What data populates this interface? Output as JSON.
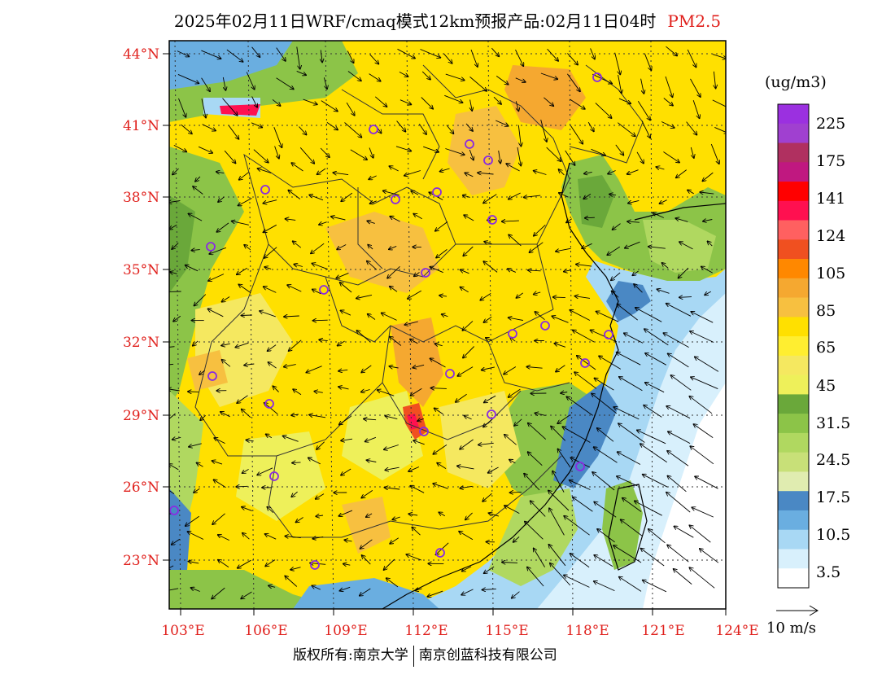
{
  "title": {
    "main": "2025年02月11日WRF/cmaq模式12km预报产品:02月11日04时",
    "species": "PM2.5",
    "species_color": "#e0201c"
  },
  "lat_labels": [
    "44°N",
    "41°N",
    "38°N",
    "35°N",
    "32°N",
    "29°N",
    "26°N",
    "23°N"
  ],
  "lon_labels": [
    "103°E",
    "106°E",
    "109°E",
    "112°E",
    "115°E",
    "118°E",
    "121°E",
    "124°E"
  ],
  "colorbar": {
    "unit": "(ug/m3)",
    "colors": [
      "#9b30e0",
      "#a040d0",
      "#b03060",
      "#c01880",
      "#ff0000",
      "#ff1050",
      "#ff6060",
      "#f05020",
      "#ff8800",
      "#f5a830",
      "#f7c040",
      "#ffe000",
      "#ffee30",
      "#f5e860",
      "#eef05a",
      "#6aa83a",
      "#8cc448",
      "#b0d860",
      "#c8e078",
      "#e0ecb0",
      "#4a88c4",
      "#6aaee0",
      "#a8d8f4",
      "#d8f0fc",
      "#ffffff"
    ],
    "labels": [
      "225",
      "175",
      "141",
      "124",
      "105",
      "85",
      "65",
      "45",
      "31.5",
      "24.5",
      "17.5",
      "10.5",
      "3.5"
    ]
  },
  "vector_legend": {
    "label": "10 m/s"
  },
  "copyright": {
    "left": "版权所有:南京大学",
    "right": "南京创蓝科技有限公司"
  },
  "station_color": "#8a2be2"
}
